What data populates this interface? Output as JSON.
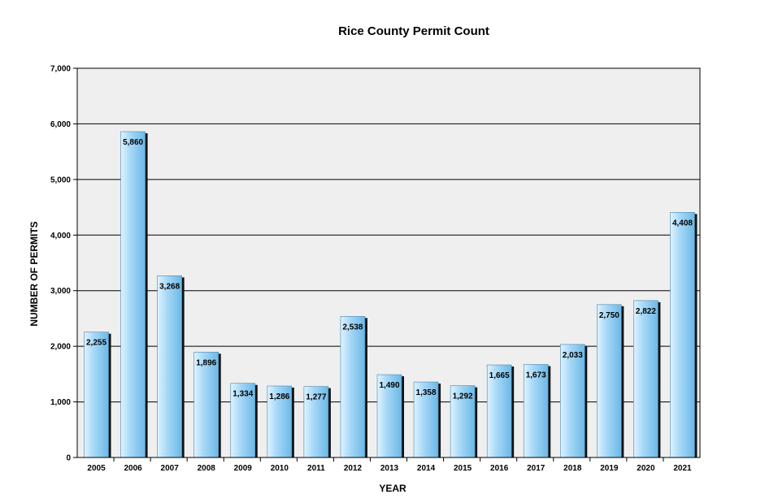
{
  "chart_data": {
    "type": "bar",
    "title": "Rice County Permit Count",
    "xlabel": "YEAR",
    "ylabel": "NUMBER OF PERMITS",
    "categories": [
      "2005",
      "2006",
      "2007",
      "2008",
      "2009",
      "2010",
      "2011",
      "2012",
      "2013",
      "2014",
      "2015",
      "2016",
      "2017",
      "2018",
      "2019",
      "2020",
      "2021"
    ],
    "values": [
      2255,
      5860,
      3268,
      1896,
      1334,
      1286,
      1277,
      2538,
      1490,
      1358,
      1292,
      1665,
      1673,
      2033,
      2750,
      2822,
      4408
    ],
    "value_labels": [
      "2,255",
      "5,860",
      "3,268",
      "1,896",
      "1,334",
      "1,286",
      "1,277",
      "2,538",
      "1,490",
      "1,358",
      "1,292",
      "1,665",
      "1,673",
      "2,033",
      "2,750",
      "2,822",
      "4,408"
    ],
    "ylim": [
      0,
      7000
    ],
    "yticks": [
      0,
      1000,
      2000,
      3000,
      4000,
      5000,
      6000,
      7000
    ],
    "ytick_labels": [
      "0",
      "1,000",
      "2,000",
      "3,000",
      "4,000",
      "5,000",
      "6,000",
      "7,000"
    ],
    "grid": true,
    "legend": "none",
    "colors": {
      "bar_light": "#dff3ff",
      "bar_main": "#a6d8f7",
      "bar_dark": "#6cb8e6",
      "bar_shadow": "#111111",
      "plot_bg": "#efefef",
      "grid": "#000000"
    }
  }
}
